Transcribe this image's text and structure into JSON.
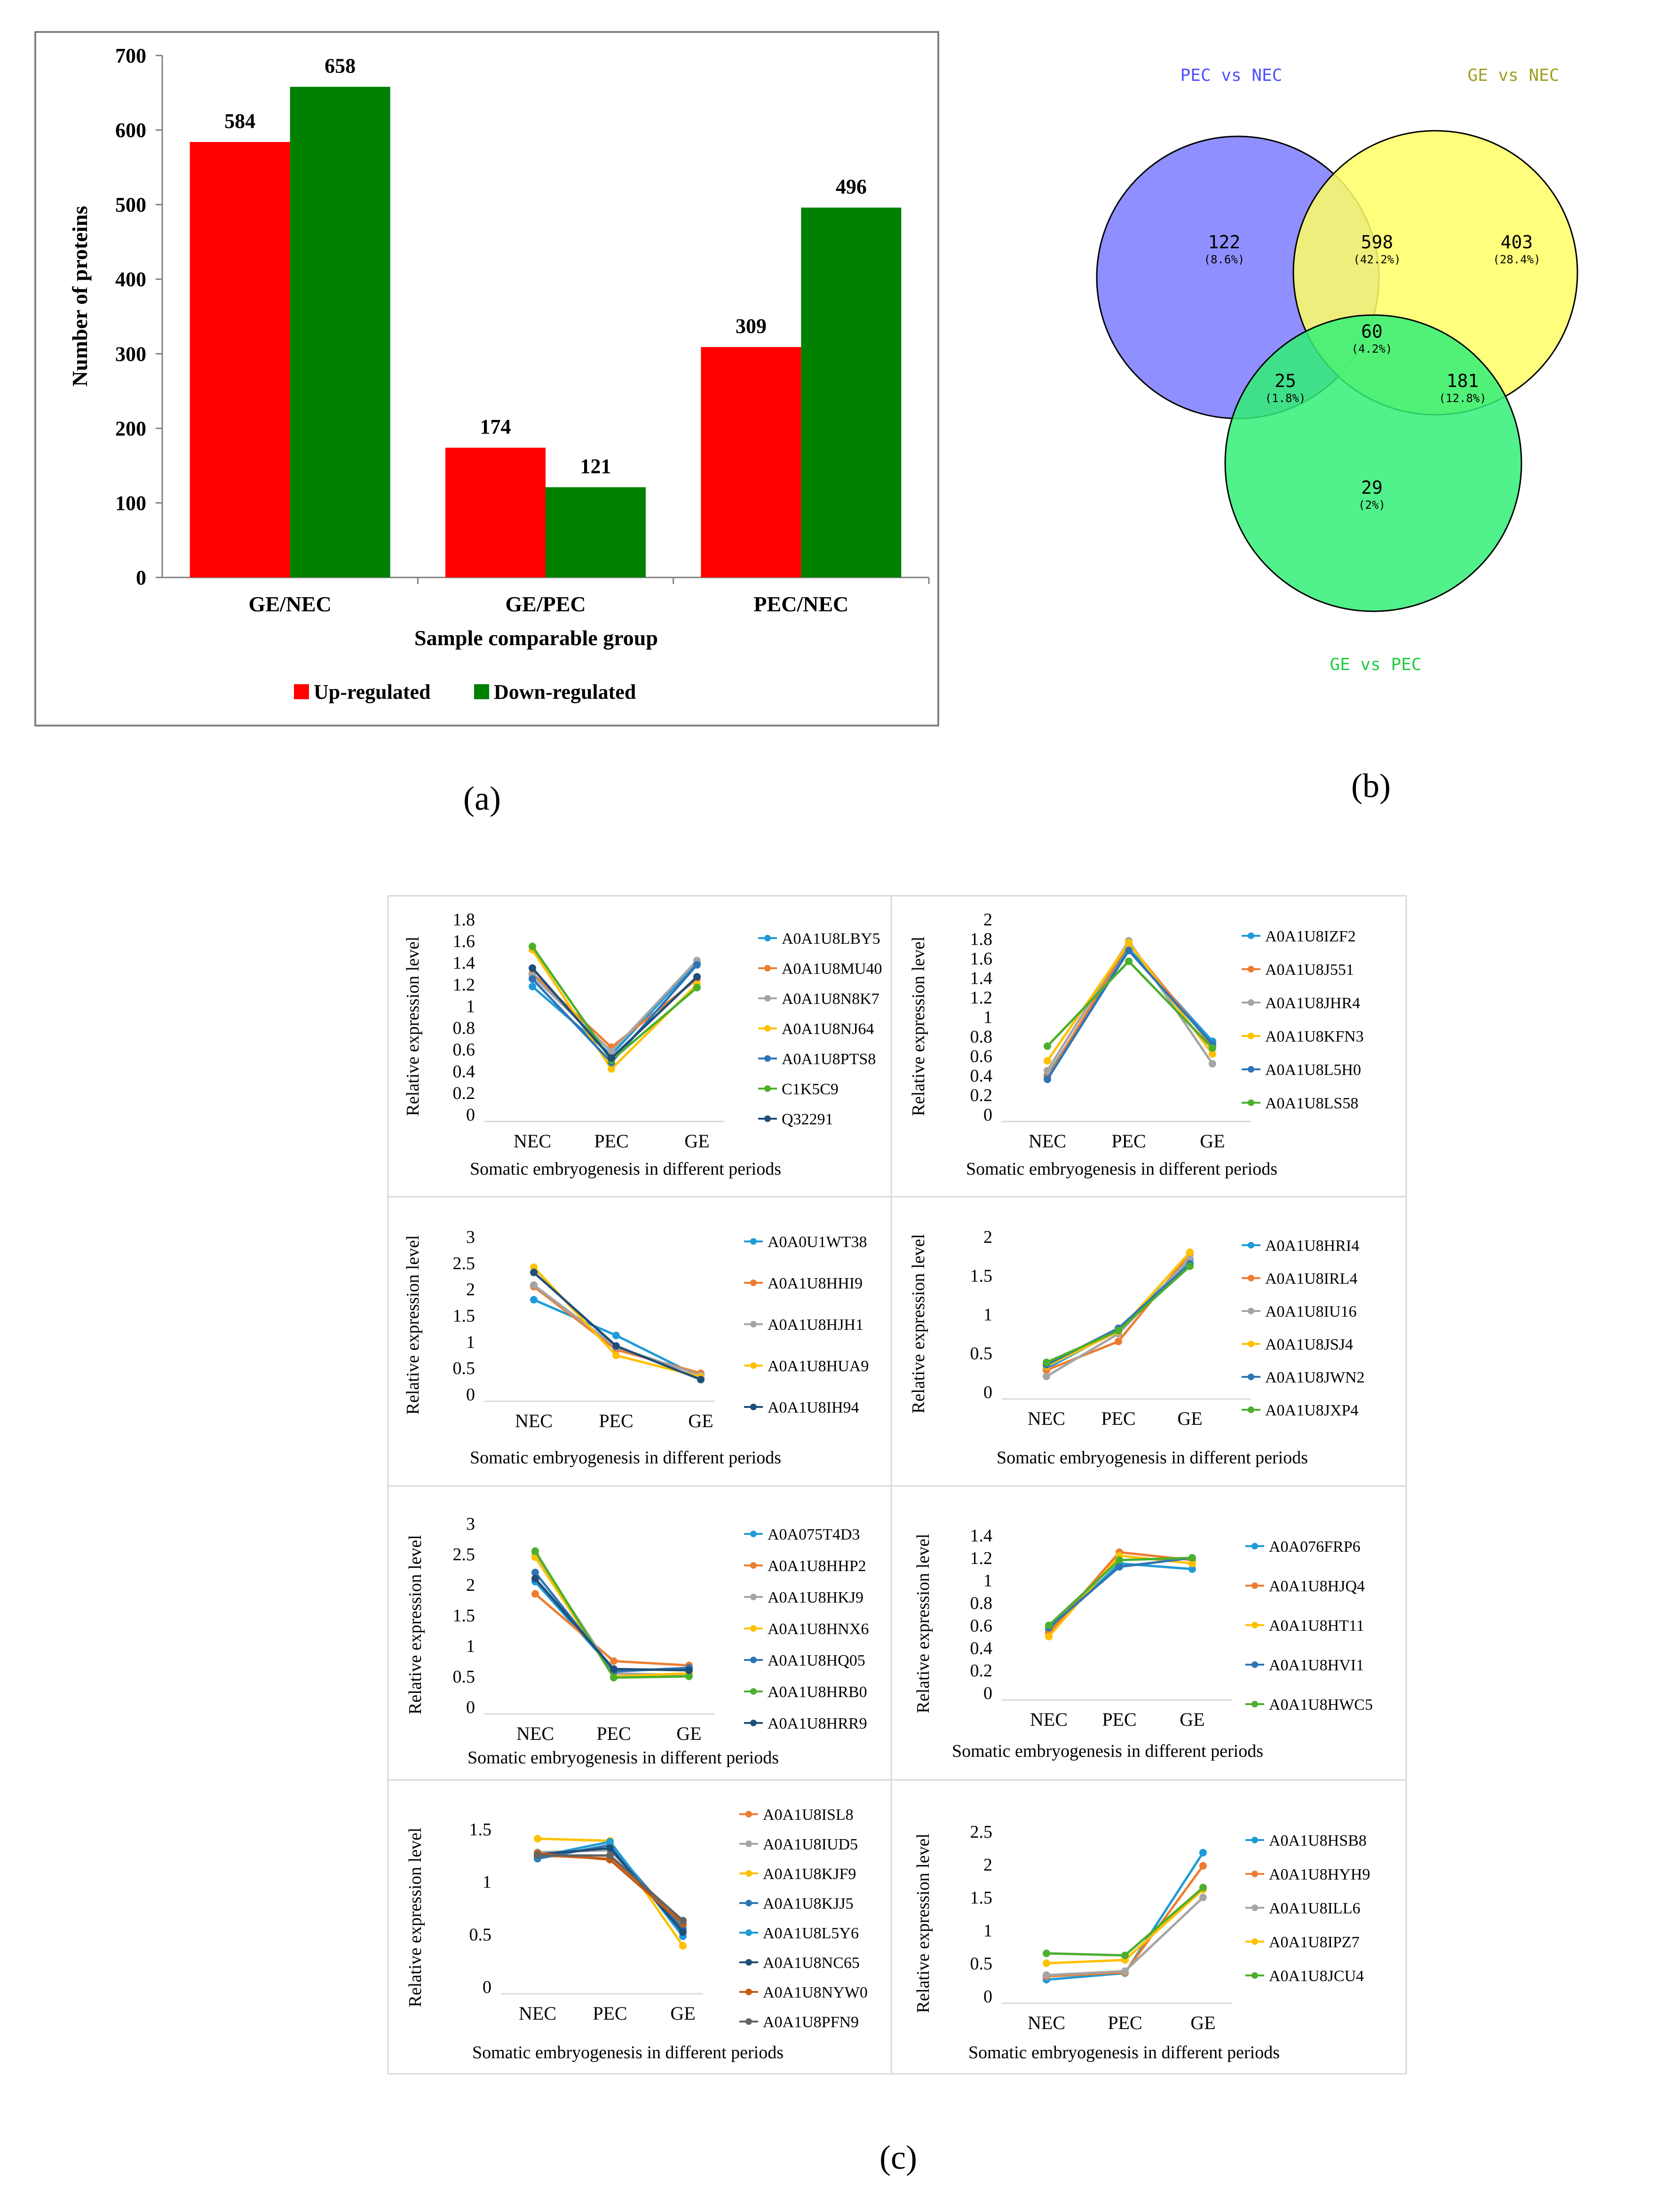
{
  "panel_labels": {
    "a": "(a)",
    "b": "(b)",
    "c": "(c)"
  },
  "chart_data": [
    {
      "type": "bar",
      "id": "a",
      "title": "",
      "xlabel": "Sample comparable group",
      "ylabel": "Number of proteins",
      "categories": [
        "GE/NEC",
        "GE/PEC",
        "PEC/NEC"
      ],
      "ylim": [
        0,
        700
      ],
      "yticks": [
        0,
        100,
        200,
        300,
        400,
        500,
        600,
        700
      ],
      "series": [
        {
          "name": "Up-regulated",
          "color": "#ff0000",
          "values": [
            584,
            174,
            309
          ]
        },
        {
          "name": "Down-regulated",
          "color": "#008000",
          "values": [
            658,
            121,
            496
          ]
        }
      ],
      "legend": "bottom",
      "grid": false
    },
    {
      "type": "venn",
      "id": "b",
      "sets": [
        {
          "name": "PEC vs NEC",
          "color": "#7b7bff",
          "label_color": "#5050ff"
        },
        {
          "name": "GE vs NEC",
          "color": "#ffff66",
          "label_color": "#a0a020"
        },
        {
          "name": "GE vs PEC",
          "color": "#33ee77",
          "label_color": "#22cc44"
        }
      ],
      "regions": [
        {
          "id": "pec_only",
          "count": "122",
          "pct": "(8.6%)"
        },
        {
          "id": "pec_ge_nec",
          "count": "598",
          "pct": "(42.2%)"
        },
        {
          "id": "ge_nec_only",
          "count": "403",
          "pct": "(28.4%)"
        },
        {
          "id": "all",
          "count": "60",
          "pct": "(4.2%)"
        },
        {
          "id": "pec_gepec",
          "count": "25",
          "pct": "(1.8%)"
        },
        {
          "id": "genec_gepec",
          "count": "181",
          "pct": "(12.8%)"
        },
        {
          "id": "gepec_only",
          "count": "29",
          "pct": "(2%)"
        }
      ]
    },
    {
      "type": "line",
      "id": "c1",
      "xlabel": "Somatic embryogenesis in different periods",
      "ylabel": "Relative expression level",
      "categories": [
        "NEC",
        "PEC",
        "GE"
      ],
      "ylim": [
        0,
        1.8
      ],
      "yticks": [
        "0",
        "0.2",
        "0.4",
        "0.6",
        "0.8",
        "1",
        "1.2",
        "1.4",
        "1.6",
        "1.8"
      ],
      "series": [
        {
          "name": "A0A1U8LBY5",
          "color": "#1f9bd7",
          "values": [
            1.18,
            0.55,
            1.4
          ]
        },
        {
          "name": "A0A1U8MU40",
          "color": "#ed7d31",
          "values": [
            1.3,
            0.62,
            1.25
          ]
        },
        {
          "name": "A0A1U8N8K7",
          "color": "#a5a5a5",
          "values": [
            1.28,
            0.58,
            1.42
          ]
        },
        {
          "name": "A0A1U8NJ64",
          "color": "#ffc000",
          "values": [
            1.52,
            0.42,
            1.2
          ]
        },
        {
          "name": "A0A1U8PTS8",
          "color": "#2e75b6",
          "values": [
            1.25,
            0.48,
            1.38
          ]
        },
        {
          "name": "C1K5C9",
          "color": "#4caf2e",
          "values": [
            1.55,
            0.5,
            1.17
          ]
        },
        {
          "name": "Q32291",
          "color": "#1f4e79",
          "values": [
            1.35,
            0.52,
            1.27
          ]
        }
      ]
    },
    {
      "type": "line",
      "id": "c2",
      "xlabel": "Somatic embryogenesis in different periods",
      "ylabel": "Relative expression level",
      "categories": [
        "NEC",
        "PEC",
        "GE"
      ],
      "ylim": [
        0,
        2
      ],
      "yticks": [
        "0",
        "0.2",
        "0.4",
        "0.6",
        "0.8",
        "1",
        "1.2",
        "1.4",
        "1.6",
        "1.8",
        "2"
      ],
      "series": [
        {
          "name": "A0A1U8IZF2",
          "color": "#1f9bd7",
          "values": [
            0.4,
            1.7,
            0.75
          ]
        },
        {
          "name": "A0A1U8J551",
          "color": "#ed7d31",
          "values": [
            0.38,
            1.75,
            0.7
          ]
        },
        {
          "name": "A0A1U8JHR4",
          "color": "#a5a5a5",
          "values": [
            0.45,
            1.78,
            0.52
          ]
        },
        {
          "name": "A0A1U8KFN3",
          "color": "#ffc000",
          "values": [
            0.55,
            1.76,
            0.62
          ]
        },
        {
          "name": "A0A1U8L5H0",
          "color": "#2e75b6",
          "values": [
            0.36,
            1.68,
            0.72
          ]
        },
        {
          "name": "A0A1U8LS58",
          "color": "#4caf2e",
          "values": [
            0.7,
            1.57,
            0.68
          ]
        }
      ]
    },
    {
      "type": "line",
      "id": "c3",
      "xlabel": "Somatic embryogenesis in different periods",
      "ylabel": "Relative expression level",
      "categories": [
        "NEC",
        "PEC",
        "GE"
      ],
      "ylim": [
        0,
        3
      ],
      "yticks": [
        "0",
        "0.5",
        "1",
        "1.5",
        "2",
        "2.5",
        "3"
      ],
      "series": [
        {
          "name": "A0A0U1WT38",
          "color": "#1f9bd7",
          "values": [
            1.8,
            1.12,
            0.32
          ]
        },
        {
          "name": "A0A1U8HHI9",
          "color": "#ed7d31",
          "values": [
            2.05,
            0.85,
            0.4
          ]
        },
        {
          "name": "A0A1U8HJH1",
          "color": "#a5a5a5",
          "values": [
            2.08,
            0.9,
            0.36
          ]
        },
        {
          "name": "A0A1U8HUA9",
          "color": "#ffc000",
          "values": [
            2.42,
            0.74,
            0.33
          ]
        },
        {
          "name": "A0A1U8IH94",
          "color": "#1f4e79",
          "values": [
            2.32,
            0.92,
            0.28
          ]
        }
      ]
    },
    {
      "type": "line",
      "id": "c4",
      "xlabel": "Somatic embryogenesis in different periods",
      "ylabel": "Relative expression level",
      "categories": [
        "NEC",
        "PEC",
        "GE"
      ],
      "ylim": [
        0,
        2
      ],
      "yticks": [
        "0",
        "0.5",
        "1",
        "1.5",
        "2"
      ],
      "series": [
        {
          "name": "A0A1U8HRI4",
          "color": "#1f9bd7",
          "values": [
            0.3,
            0.8,
            1.7
          ]
        },
        {
          "name": "A0A1U8IRL4",
          "color": "#ed7d31",
          "values": [
            0.28,
            0.65,
            1.78
          ]
        },
        {
          "name": "A0A1U8IU16",
          "color": "#a5a5a5",
          "values": [
            0.2,
            0.75,
            1.72
          ]
        },
        {
          "name": "A0A1U8JSJ4",
          "color": "#ffc000",
          "values": [
            0.33,
            0.78,
            1.8
          ]
        },
        {
          "name": "A0A1U8JWN2",
          "color": "#2e75b6",
          "values": [
            0.35,
            0.82,
            1.65
          ]
        },
        {
          "name": "A0A1U8JXP4",
          "color": "#4caf2e",
          "values": [
            0.38,
            0.79,
            1.62
          ]
        }
      ]
    },
    {
      "type": "line",
      "id": "c5",
      "xlabel": "Somatic embryogenesis in different periods",
      "ylabel": "Relative expression level",
      "categories": [
        "NEC",
        "PEC",
        "GE"
      ],
      "ylim": [
        0,
        3
      ],
      "yticks": [
        "0",
        "0.5",
        "1",
        "1.5",
        "2",
        "2.5",
        "3"
      ],
      "series": [
        {
          "name": "A0A075T4D3",
          "color": "#1f9bd7",
          "values": [
            2.05,
            0.6,
            0.62
          ]
        },
        {
          "name": "A0A1U8HHP2",
          "color": "#ed7d31",
          "values": [
            1.85,
            0.75,
            0.68
          ]
        },
        {
          "name": "A0A1U8HKJ9",
          "color": "#a5a5a5",
          "values": [
            2.5,
            0.55,
            0.52
          ]
        },
        {
          "name": "A0A1U8HNX6",
          "color": "#ffc000",
          "values": [
            2.45,
            0.5,
            0.55
          ]
        },
        {
          "name": "A0A1U8HQ05",
          "color": "#2e75b6",
          "values": [
            2.2,
            0.58,
            0.64
          ]
        },
        {
          "name": "A0A1U8HRB0",
          "color": "#4caf2e",
          "values": [
            2.55,
            0.48,
            0.5
          ]
        },
        {
          "name": "A0A1U8HRR9",
          "color": "#1f4e79",
          "values": [
            2.1,
            0.62,
            0.6
          ]
        }
      ]
    },
    {
      "type": "line",
      "id": "c6",
      "xlabel": "Somatic embryogenesis in different periods",
      "ylabel": "Relative expression level",
      "categories": [
        "NEC",
        "PEC",
        "GE"
      ],
      "ylim": [
        0,
        1.4
      ],
      "yticks": [
        "0",
        "0.2",
        "0.4",
        "0.6",
        "0.8",
        "1",
        "1.2",
        "1.4"
      ],
      "series": [
        {
          "name": "A0A076FRP6",
          "color": "#1f9bd7",
          "values": [
            0.55,
            1.15,
            1.1
          ]
        },
        {
          "name": "A0A1U8HJQ4",
          "color": "#ed7d31",
          "values": [
            0.53,
            1.25,
            1.18
          ]
        },
        {
          "name": "A0A1U8HT11",
          "color": "#ffc000",
          "values": [
            0.5,
            1.22,
            1.15
          ]
        },
        {
          "name": "A0A1U8HVI1",
          "color": "#2e75b6",
          "values": [
            0.58,
            1.12,
            1.2
          ]
        },
        {
          "name": "A0A1U8HWC5",
          "color": "#4caf2e",
          "values": [
            0.6,
            1.18,
            1.2
          ]
        }
      ]
    },
    {
      "type": "line",
      "id": "c7",
      "xlabel": "Somatic embryogenesis in different periods",
      "ylabel": "Relative expression level",
      "categories": [
        "NEC",
        "PEC",
        "GE"
      ],
      "ylim": [
        0,
        1.5
      ],
      "yticks": [
        "0",
        "0.5",
        "1",
        "1.5"
      ],
      "series": [
        {
          "name": "A0A1U8ISL8",
          "color": "#ed7d31",
          "values": [
            1.25,
            1.22,
            0.62
          ]
        },
        {
          "name": "A0A1U8IUD5",
          "color": "#a5a5a5",
          "values": [
            1.28,
            1.3,
            0.58
          ]
        },
        {
          "name": "A0A1U8KJF9",
          "color": "#ffc000",
          "values": [
            1.41,
            1.39,
            0.39
          ]
        },
        {
          "name": "A0A1U8KJJ5",
          "color": "#2e75b6",
          "values": [
            1.22,
            1.35,
            0.55
          ]
        },
        {
          "name": "A0A1U8L5Y6",
          "color": "#1f9bd7",
          "values": [
            1.24,
            1.38,
            0.48
          ]
        },
        {
          "name": "A0A1U8NC65",
          "color": "#1f4e79",
          "values": [
            1.26,
            1.32,
            0.52
          ]
        },
        {
          "name": "A0A1U8NYW0",
          "color": "#c55a11",
          "values": [
            1.27,
            1.21,
            0.6
          ]
        },
        {
          "name": "A0A1U8PFN9",
          "color": "#636363",
          "values": [
            1.25,
            1.25,
            0.63
          ]
        }
      ]
    },
    {
      "type": "line",
      "id": "c8",
      "xlabel": "Somatic embryogenesis in different periods",
      "ylabel": "Relative expression level",
      "categories": [
        "NEC",
        "PEC",
        "GE"
      ],
      "ylim": [
        0,
        2.5
      ],
      "yticks": [
        "0",
        "0.5",
        "1",
        "1.5",
        "2",
        "2.5"
      ],
      "series": [
        {
          "name": "A0A1U8HSB8",
          "color": "#1f9bd7",
          "values": [
            0.25,
            0.35,
            2.18
          ]
        },
        {
          "name": "A0A1U8HYH9",
          "color": "#ed7d31",
          "values": [
            0.3,
            0.36,
            1.98
          ]
        },
        {
          "name": "A0A1U8ILL6",
          "color": "#a5a5a5",
          "values": [
            0.32,
            0.38,
            1.5
          ]
        },
        {
          "name": "A0A1U8IPZ7",
          "color": "#ffc000",
          "values": [
            0.5,
            0.55,
            1.62
          ]
        },
        {
          "name": "A0A1U8JCU4",
          "color": "#4caf2e",
          "values": [
            0.65,
            0.62,
            1.65
          ]
        }
      ]
    }
  ]
}
